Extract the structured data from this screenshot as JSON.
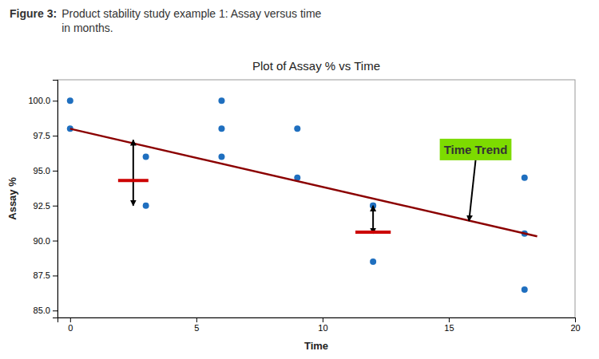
{
  "chart_data": {
    "type": "scatter",
    "title": "Plot of Assay % vs Time",
    "caption_label": "Figure 3:",
    "caption": [
      "Product stability study example 1: Assay versus time",
      "in months."
    ],
    "x_label": "Time",
    "y_label": "Assay %",
    "xlim": [
      -0.5,
      20
    ],
    "ylim": [
      84.5,
      101.5
    ],
    "xticks": [
      0,
      5,
      10,
      15,
      20
    ],
    "yticks": [
      {
        "value": 85.0,
        "label": "85.0"
      },
      87.5,
      {
        "value": 90.0,
        "label": "90.0"
      },
      92.5,
      {
        "value": 95.0,
        "label": "95.0"
      },
      97.5,
      {
        "value": 100.0,
        "label": "100.0"
      }
    ],
    "grid": false,
    "series": [
      {
        "type": "scatter",
        "color": "#1f6fbf",
        "x": [
          0,
          0,
          3,
          3,
          6,
          6,
          6,
          9,
          9,
          12,
          12,
          12,
          18,
          18,
          18
        ],
        "values": [
          100.0,
          98.0,
          96.0,
          92.5,
          100.0,
          98.0,
          96.0,
          98.0,
          94.5,
          92.5,
          92.5,
          88.5,
          94.5,
          90.5,
          86.5
        ]
      },
      {
        "type": "line",
        "color": "#8B0000",
        "x": [
          0,
          18.5
        ],
        "values": [
          98.0,
          90.3
        ]
      }
    ],
    "residuals": [
      {
        "x": 2.5,
        "top": 97.2,
        "bottom": 92.5,
        "bar_y": 94.3,
        "bar_x0": 1.9,
        "bar_x1": 3.1,
        "color": "#cc0000"
      },
      {
        "x": 12.0,
        "top": 92.5,
        "bottom": 90.5,
        "bar_y": 90.6,
        "bar_x0": 11.3,
        "bar_x1": 12.7,
        "color": "#cc0000"
      }
    ],
    "annotations": [
      {
        "text": "Time Trend",
        "xy": [
          15.8,
          91.4
        ],
        "xytext": [
          14.8,
          96.2
        ],
        "color": "#7ddb00"
      }
    ]
  }
}
